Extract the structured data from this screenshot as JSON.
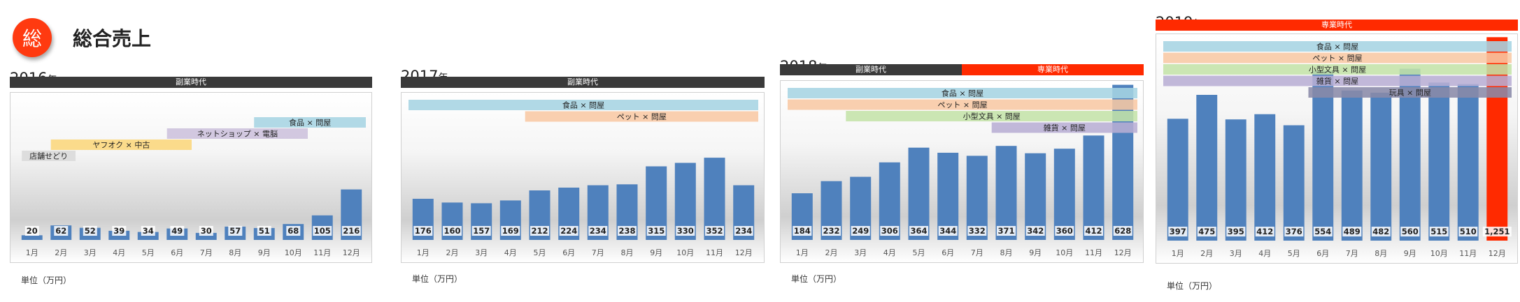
{
  "page": {
    "badge": "総",
    "title": "総合売上",
    "colors": {
      "accent": "#ff3a10",
      "era_side": "#3a3a3a",
      "era_main": "#ff2a00",
      "bar": "#4f81bd"
    }
  },
  "chart_data": [
    {
      "type": "bar",
      "year": "2016",
      "year_suffix": "年",
      "era": [
        {
          "label": "副業時代",
          "months": [
            1,
            12
          ],
          "color": "#3a3a3a"
        }
      ],
      "categories": [
        "1月",
        "2月",
        "3月",
        "4月",
        "5月",
        "6月",
        "7月",
        "8月",
        "9月",
        "10月",
        "11月",
        "12月"
      ],
      "values": [
        20,
        62,
        52,
        39,
        34,
        49,
        30,
        57,
        51,
        68,
        105,
        216
      ],
      "value_labels": [
        "20",
        "62",
        "52",
        "39",
        "34",
        "49",
        "30",
        "57",
        "51",
        "68",
        "105",
        "216"
      ],
      "ylim": [
        0,
        600
      ],
      "unit": "単位（万円）",
      "businesses": [
        {
          "label": "食品 × 問屋",
          "from": 9,
          "to": 12,
          "color": "#a6d4e2"
        },
        {
          "label": "ネットショップ × 電脳",
          "from": 6,
          "to": 10,
          "color": "#ccc0dc"
        },
        {
          "label": "ヤフオク × 中古",
          "from": 2,
          "to": 6,
          "color": "#fcd77c"
        },
        {
          "label": "店舗せどり",
          "from": 1,
          "to": 2,
          "color": "#d9d9d9"
        }
      ]
    },
    {
      "type": "bar",
      "year": "2017",
      "year_suffix": "年",
      "era": [
        {
          "label": "副業時代",
          "months": [
            1,
            12
          ],
          "color": "#3a3a3a"
        }
      ],
      "categories": [
        "1月",
        "2月",
        "3月",
        "4月",
        "5月",
        "6月",
        "7月",
        "8月",
        "9月",
        "10月",
        "11月",
        "12月"
      ],
      "values": [
        176,
        160,
        157,
        169,
        212,
        224,
        234,
        238,
        315,
        330,
        352,
        234
      ],
      "value_labels": [
        "176",
        "160",
        "157",
        "169",
        "212",
        "224",
        "234",
        "238",
        "315",
        "330",
        "352",
        "234"
      ],
      "ylim": [
        0,
        600
      ],
      "unit": "単位（万円）",
      "businesses": [
        {
          "label": "食品 × 問屋",
          "from": 1,
          "to": 12,
          "color": "#a6d4e2"
        },
        {
          "label": "ペット × 問屋",
          "from": 5,
          "to": 12,
          "color": "#f8c8a4"
        }
      ]
    },
    {
      "type": "bar",
      "year": "2018",
      "year_suffix": "年",
      "era": [
        {
          "label": "副業時代",
          "months": [
            1,
            6
          ],
          "color": "#3a3a3a"
        },
        {
          "label": "専業時代",
          "months": [
            7,
            12
          ],
          "color": "#ff2a00"
        }
      ],
      "categories": [
        "1月",
        "2月",
        "3月",
        "4月",
        "5月",
        "6月",
        "7月",
        "8月",
        "9月",
        "10月",
        "11月",
        "12月"
      ],
      "values": [
        184,
        232,
        249,
        306,
        364,
        344,
        332,
        371,
        342,
        360,
        412,
        628
      ],
      "value_labels": [
        "184",
        "232",
        "249",
        "306",
        "364",
        "344",
        "332",
        "371",
        "342",
        "360",
        "412",
        "628"
      ],
      "ylim": [
        0,
        600
      ],
      "unit": "単位（万円）",
      "businesses": [
        {
          "label": "食品 × 問屋",
          "from": 1,
          "to": 12,
          "color": "#a6d4e2"
        },
        {
          "label": "ペット × 問屋",
          "from": 1,
          "to": 12,
          "color": "#f8c8a4"
        },
        {
          "label": "小型文具 × 問屋",
          "from": 3,
          "to": 12,
          "color": "#c4e2a8"
        },
        {
          "label": "雑貨 × 問屋",
          "from": 8,
          "to": 12,
          "color": "#b8aed4"
        }
      ]
    },
    {
      "type": "bar",
      "year": "2019",
      "year_suffix": "年",
      "era": [
        {
          "label": "専業時代",
          "months": [
            1,
            12
          ],
          "color": "#ff2a00"
        }
      ],
      "categories": [
        "1月",
        "2月",
        "3月",
        "4月",
        "5月",
        "6月",
        "7月",
        "8月",
        "9月",
        "10月",
        "11月",
        "12月"
      ],
      "values": [
        397,
        475,
        395,
        412,
        376,
        554,
        489,
        482,
        560,
        515,
        510,
        1251
      ],
      "value_labels": [
        "397",
        "475",
        "395",
        "412",
        "376",
        "554",
        "489",
        "482",
        "560",
        "515",
        "510",
        "1,251"
      ],
      "ylim": [
        0,
        650
      ],
      "unit": "単位（万円）",
      "businesses": [
        {
          "label": "食品 × 問屋",
          "from": 1,
          "to": 12,
          "color": "#a6d4e2"
        },
        {
          "label": "ペット × 問屋",
          "from": 1,
          "to": 12,
          "color": "#f8c8a4"
        },
        {
          "label": "小型文具 × 問屋",
          "from": 1,
          "to": 12,
          "color": "#c4e2a8"
        },
        {
          "label": "雑貨 × 問屋",
          "from": 1,
          "to": 12,
          "color": "#b8aed4"
        },
        {
          "label": "玩具 × 問屋",
          "from": 6,
          "to": 12,
          "color": "#8a8aa8"
        }
      ],
      "highlight_month": 12
    }
  ]
}
